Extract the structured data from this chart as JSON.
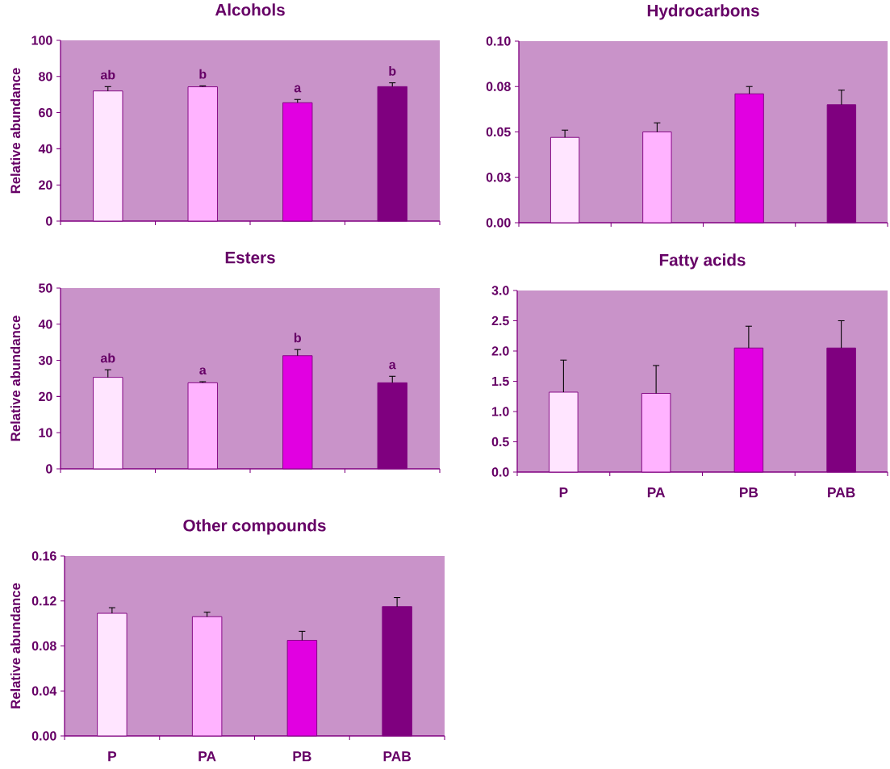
{
  "chart_data": [
    {
      "type": "bar",
      "title": "Alcohols",
      "ylabel": "Relative abundance",
      "categories": [
        null,
        null,
        null,
        null
      ],
      "values": [
        72,
        74.3,
        65.5,
        74.4
      ],
      "colors": [
        "#ffe5ff",
        "#ffb3ff",
        "#e100e1",
        "#7f007f"
      ],
      "errors": [
        [
          72,
          74.4
        ],
        [
          74.3,
          74.8
        ],
        [
          65.5,
          67.3
        ],
        [
          74.4,
          76.5
        ]
      ],
      "ylim": [
        0,
        100
      ],
      "yticks": [
        0,
        20,
        40,
        60,
        80,
        100
      ],
      "annotations": [
        "ab",
        "b",
        "a",
        "b"
      ]
    },
    {
      "type": "bar",
      "title": "Hydrocarbons",
      "categories": [
        null,
        null,
        null,
        null
      ],
      "values": [
        0.047,
        0.05,
        0.071,
        0.065
      ],
      "colors": [
        "#ffe5ff",
        "#ffb3ff",
        "#e100e1",
        "#7f007f"
      ],
      "errors": [
        [
          0.047,
          0.051
        ],
        [
          0.05,
          0.055
        ],
        [
          0.071,
          0.075
        ],
        [
          0.065,
          0.073
        ]
      ],
      "ylim": [
        0,
        0.1
      ],
      "yticks": [
        {
          "value": 0,
          "label": "0.00"
        },
        {
          "value": 0.025,
          "label": "0.03"
        },
        0.05,
        {
          "value": 0.075,
          "label": "0.08"
        },
        {
          "value": 0.1,
          "label": "0.10"
        }
      ]
    },
    {
      "type": "bar",
      "title": "Esters",
      "ylabel": "Relative abundance",
      "categories": [
        null,
        null,
        null,
        null
      ],
      "values": [
        25.3,
        23.8,
        31.3,
        23.8
      ],
      "colors": [
        "#ffe5ff",
        "#ffb3ff",
        "#e100e1",
        "#7f007f"
      ],
      "errors": [
        [
          25.3,
          27.4
        ],
        [
          23.8,
          24.1
        ],
        [
          31.3,
          33.0
        ],
        [
          23.8,
          25.6
        ]
      ],
      "ylim": [
        0,
        50
      ],
      "yticks": [
        0,
        10,
        20,
        30,
        40,
        50
      ],
      "annotations": [
        "ab",
        "a",
        "b",
        "a"
      ]
    },
    {
      "type": "bar",
      "title": "Fatty acids",
      "categories": [
        "P",
        "PA",
        "PB",
        "PAB"
      ],
      "values": [
        1.32,
        1.3,
        2.05,
        2.05
      ],
      "colors": [
        "#ffe5ff",
        "#ffb3ff",
        "#e100e1",
        "#7f007f"
      ],
      "errors": [
        [
          1.32,
          1.85
        ],
        [
          1.3,
          1.76
        ],
        [
          2.05,
          2.41
        ],
        [
          2.05,
          2.5
        ]
      ],
      "ylim": [
        0,
        3
      ],
      "yticks": [
        {
          "value": 0,
          "label": "0.0"
        },
        0.5,
        {
          "value": 1,
          "label": "1.0"
        },
        1.5,
        {
          "value": 2,
          "label": "2.0"
        },
        2.5,
        {
          "value": 3,
          "label": "3.0"
        }
      ]
    },
    {
      "type": "bar",
      "title": "Other compounds",
      "ylabel": "Relative abundance",
      "categories": [
        "P",
        "PA",
        "PB",
        "PAB"
      ],
      "values": [
        0.109,
        0.106,
        0.085,
        0.115
      ],
      "colors": [
        "#ffe5ff",
        "#ffb3ff",
        "#e100e1",
        "#7f007f"
      ],
      "errors": [
        [
          0.109,
          0.114
        ],
        [
          0.106,
          0.11
        ],
        [
          0.085,
          0.093
        ],
        [
          0.115,
          0.123
        ]
      ],
      "ylim": [
        0,
        0.16
      ],
      "yticks": [
        {
          "value": 0,
          "label": "0.00"
        },
        0.04,
        0.08,
        0.12,
        0.16
      ]
    }
  ]
}
